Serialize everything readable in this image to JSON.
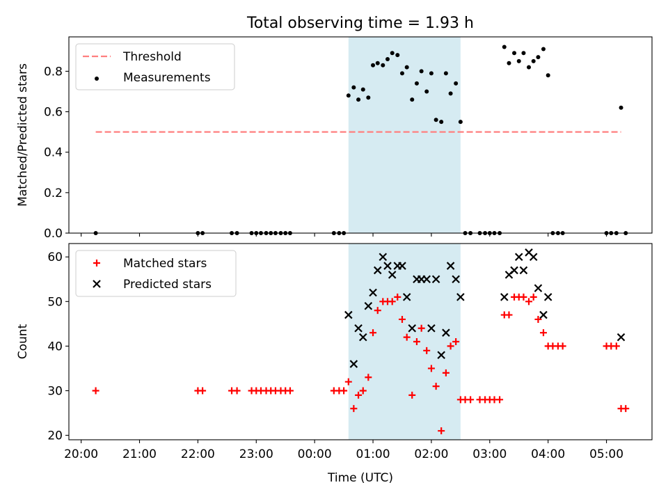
{
  "title": "Total observing time = 1.93 h",
  "chart_data": [
    {
      "type": "scatter",
      "ylabel": "Matched/Predicted stars",
      "ylim": [
        0,
        0.97
      ],
      "yticks": [
        0.0,
        0.2,
        0.4,
        0.6,
        0.8
      ],
      "ytick_labels": [
        "0.0",
        "0.2",
        "0.4",
        "0.6",
        "0.8"
      ],
      "legend": [
        "Threshold",
        "Measurements"
      ],
      "legend_position": "upper-left",
      "threshold": {
        "name": "Threshold",
        "y": 0.5,
        "x_start": 20.25,
        "x_end": 5.25,
        "color": "#ff7f7f",
        "style": "dashed"
      },
      "shaded_region": {
        "x_start": 0.58,
        "x_end": 2.5,
        "color": "#add8e6"
      },
      "series": [
        {
          "name": "Measurements",
          "color": "#000000",
          "marker": "dot",
          "x": [
            20.25,
            22.0,
            22.08,
            22.58,
            22.67,
            22.92,
            23.0,
            23.08,
            23.17,
            23.25,
            23.33,
            23.42,
            23.5,
            23.58,
            0.33,
            0.42,
            0.5,
            0.58,
            0.67,
            0.75,
            0.83,
            0.92,
            1.0,
            1.08,
            1.17,
            1.25,
            1.33,
            1.42,
            1.5,
            1.58,
            1.67,
            1.75,
            1.83,
            1.92,
            2.0,
            2.08,
            2.17,
            2.25,
            2.33,
            2.42,
            2.5,
            2.58,
            2.67,
            2.83,
            2.92,
            3.0,
            3.08,
            3.17,
            3.25,
            3.33,
            3.42,
            3.5,
            3.58,
            3.67,
            3.75,
            3.83,
            3.92,
            4.0,
            4.08,
            4.17,
            4.25,
            5.0,
            5.08,
            5.17,
            5.25,
            5.33
          ],
          "y": [
            0.0,
            0.0,
            0.0,
            0.0,
            0.0,
            0.0,
            0.0,
            0.0,
            0.0,
            0.0,
            0.0,
            0.0,
            0.0,
            0.0,
            0.0,
            0.0,
            0.0,
            0.68,
            0.72,
            0.66,
            0.71,
            0.67,
            0.83,
            0.84,
            0.83,
            0.86,
            0.89,
            0.88,
            0.79,
            0.82,
            0.66,
            0.74,
            0.8,
            0.7,
            0.79,
            0.56,
            0.55,
            0.79,
            0.69,
            0.74,
            0.55,
            0.0,
            0.0,
            0.0,
            0.0,
            0.0,
            0.0,
            0.0,
            0.92,
            0.84,
            0.89,
            0.85,
            0.89,
            0.82,
            0.85,
            0.87,
            0.91,
            0.78,
            0.0,
            0.0,
            0.0,
            0.0,
            0.0,
            0.0,
            0.62,
            0.0
          ]
        }
      ]
    },
    {
      "type": "scatter",
      "xlabel": "Time (UTC)",
      "ylabel": "Count",
      "ylim": [
        19,
        63
      ],
      "yticks": [
        20,
        30,
        40,
        50,
        60
      ],
      "ytick_labels": [
        "20",
        "30",
        "40",
        "50",
        "60"
      ],
      "xticks": [
        20.0,
        21.0,
        22.0,
        23.0,
        0.0,
        1.0,
        2.0,
        3.0,
        4.0,
        5.0
      ],
      "xtick_labels": [
        "20:00",
        "21:00",
        "22:00",
        "23:00",
        "00:00",
        "01:00",
        "02:00",
        "03:00",
        "04:00",
        "05:00"
      ],
      "legend": [
        "Matched stars",
        "Predicted stars"
      ],
      "legend_position": "upper-left",
      "shaded_region": {
        "x_start": 0.58,
        "x_end": 2.5,
        "color": "#add8e6"
      },
      "series": [
        {
          "name": "Matched stars",
          "color": "#ff0000",
          "marker": "plus",
          "x": [
            20.25,
            22.0,
            22.08,
            22.58,
            22.67,
            22.92,
            23.0,
            23.08,
            23.17,
            23.25,
            23.33,
            23.42,
            23.5,
            23.58,
            0.33,
            0.42,
            0.5,
            0.58,
            0.67,
            0.75,
            0.83,
            0.92,
            1.0,
            1.08,
            1.17,
            1.25,
            1.33,
            1.42,
            1.5,
            1.58,
            1.67,
            1.75,
            1.83,
            1.92,
            2.0,
            2.08,
            2.17,
            2.25,
            2.33,
            2.42,
            2.5,
            2.58,
            2.67,
            2.83,
            2.92,
            3.0,
            3.08,
            3.17,
            3.25,
            3.33,
            3.42,
            3.5,
            3.58,
            3.67,
            3.75,
            3.83,
            3.92,
            4.0,
            4.08,
            4.17,
            4.25,
            5.0,
            5.08,
            5.17,
            5.25,
            5.33
          ],
          "y": [
            30,
            30,
            30,
            30,
            30,
            30,
            30,
            30,
            30,
            30,
            30,
            30,
            30,
            30,
            30,
            30,
            30,
            32,
            26,
            29,
            30,
            33,
            43,
            48,
            50,
            50,
            50,
            51,
            46,
            42,
            29,
            41,
            44,
            39,
            35,
            31,
            21,
            34,
            40,
            41,
            28,
            28,
            28,
            28,
            28,
            28,
            28,
            28,
            47,
            47,
            51,
            51,
            51,
            50,
            51,
            46,
            43,
            40,
            40,
            40,
            40,
            40,
            40,
            40,
            26,
            26
          ]
        },
        {
          "name": "Predicted stars",
          "color": "#000000",
          "marker": "x",
          "x": [
            0.58,
            0.67,
            0.75,
            0.83,
            0.92,
            1.0,
            1.08,
            1.17,
            1.25,
            1.33,
            1.42,
            1.5,
            1.58,
            1.67,
            1.75,
            1.83,
            1.92,
            2.0,
            2.08,
            2.17,
            2.25,
            2.33,
            2.42,
            2.5,
            3.25,
            3.33,
            3.42,
            3.5,
            3.58,
            3.67,
            3.75,
            3.83,
            3.92,
            4.0,
            5.25
          ],
          "y": [
            47,
            36,
            44,
            42,
            49,
            52,
            57,
            60,
            58,
            56,
            58,
            58,
            51,
            44,
            55,
            55,
            55,
            44,
            55,
            38,
            43,
            58,
            55,
            51,
            51,
            56,
            57,
            60,
            57,
            61,
            60,
            53,
            47,
            51,
            42
          ]
        }
      ]
    }
  ]
}
